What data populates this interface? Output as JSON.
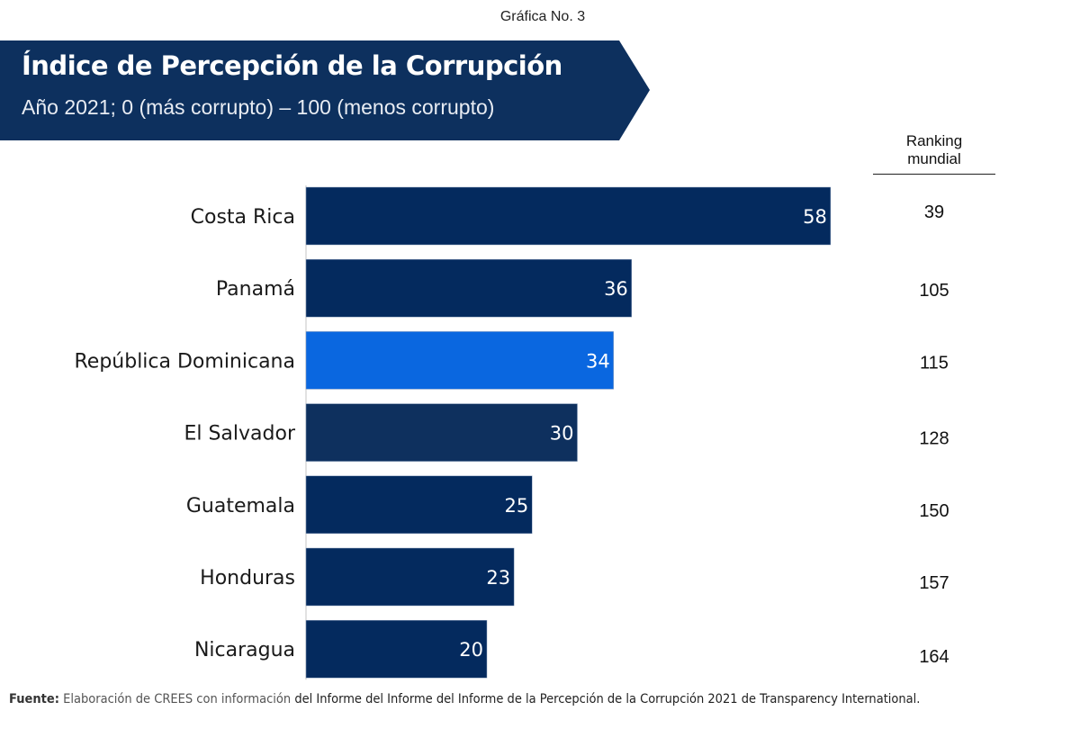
{
  "header": {
    "chart_number": "Gráfica No. 3",
    "title": "Índice de Percepción de la Corrupción",
    "subtitle": "Año 2021; 0 (más corrupto) – 100 (menos corrupto)"
  },
  "ranking": {
    "header_line1": "Ranking",
    "header_line2": "mundial"
  },
  "colors": {
    "banner": "#0d305e",
    "bar_default": "#042a5e",
    "bar_highlight": "#0a67e0",
    "bar_el_salvador": "#0e305e",
    "axis": "#d9d9d9"
  },
  "chart_data": {
    "type": "bar",
    "orientation": "horizontal",
    "title": "Índice de Percepción de la Corrupción",
    "subtitle": "Año 2021; 0 (más corrupto) – 100 (menos corrupto)",
    "xlabel": "",
    "ylabel": "",
    "xlim": [
      0,
      100
    ],
    "grid": false,
    "categories": [
      "Costa Rica",
      "Panamá",
      "República Dominicana",
      "El Salvador",
      "Guatemala",
      "Honduras",
      "Nicaragua"
    ],
    "values": [
      58,
      36,
      34,
      30,
      25,
      23,
      20
    ],
    "ranking_mundial": [
      39,
      105,
      115,
      128,
      150,
      157,
      164
    ],
    "highlight": "República Dominicana",
    "data_labels": [
      "58",
      "36",
      "34",
      "30",
      "25",
      "23",
      "20"
    ],
    "rank_labels": [
      "39",
      "105",
      "115",
      "128",
      "150",
      "157",
      "164"
    ]
  },
  "footer": {
    "source_label": "Fuente:",
    "source_part1": "Elaboración de CREES con información",
    "source_part2": "del Informe del Informe del  Informe de la Percepción de la Corrupción 2021 de Transparency International."
  }
}
